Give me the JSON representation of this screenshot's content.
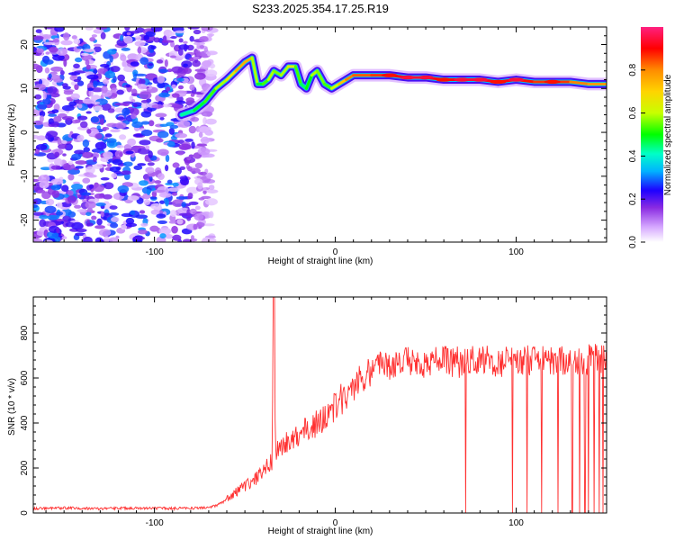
{
  "chart_data": [
    {
      "type": "heatmap",
      "title": "S233.2025.354.17.25.R19",
      "xlabel": "Height of straight line (km)",
      "ylabel": "Frequency (Hz)",
      "xlim": [
        -167,
        150
      ],
      "ylim": [
        -25,
        24
      ],
      "x_ticks": [
        -100,
        0,
        100
      ],
      "y_ticks": [
        -20,
        -10,
        0,
        10,
        20
      ],
      "colorbar": {
        "label": "Normalized spectral amplitude",
        "range": [
          0,
          1
        ],
        "ticks": [
          "0.0",
          "0.2",
          "0.4",
          "0.6",
          "0.8"
        ],
        "colors": [
          "#ffffff",
          "#d6a8ff",
          "#8a2be2",
          "#1e00ff",
          "#00b4ff",
          "#00ffc8",
          "#00ff00",
          "#c8ff00",
          "#ffd400",
          "#ff8c00",
          "#ff0000",
          "#ff2080"
        ]
      },
      "ridge": {
        "x": [
          -85,
          -78,
          -72,
          -66,
          -60,
          -55,
          -50,
          -46,
          -43,
          -40,
          -37,
          -34,
          -30,
          -26,
          -22,
          -19,
          -16,
          -13,
          -10,
          -6,
          -2,
          2,
          6,
          10,
          20,
          30,
          40,
          50,
          60,
          70,
          80,
          90,
          100,
          110,
          120,
          130,
          140,
          150
        ],
        "frequency": [
          4,
          5,
          7,
          10,
          12,
          14,
          16,
          17,
          11,
          11,
          12,
          14,
          13,
          15,
          15,
          11,
          10,
          13,
          14,
          11,
          10,
          11,
          12,
          13,
          13,
          13,
          12.5,
          12.5,
          12,
          12,
          12,
          11.5,
          12,
          11.5,
          11.5,
          11.5,
          11,
          11
        ],
        "amplitude": [
          0.45,
          0.5,
          0.55,
          0.6,
          0.65,
          0.75,
          0.8,
          0.75,
          0.5,
          0.55,
          0.6,
          0.65,
          0.55,
          0.7,
          0.65,
          0.5,
          0.5,
          0.6,
          0.65,
          0.55,
          0.6,
          0.7,
          0.8,
          0.85,
          0.85,
          0.9,
          0.95,
          0.95,
          0.9,
          0.95,
          0.95,
          0.9,
          0.95,
          0.85,
          0.9,
          0.85,
          0.8,
          0.8
        ]
      },
      "noise_region": {
        "x_range": [
          -167,
          -68
        ],
        "frequency_range": [
          -25,
          24
        ],
        "amplitude_range": [
          0.05,
          0.35
        ]
      }
    },
    {
      "type": "line",
      "title": "",
      "xlabel": "Height of straight line (km)",
      "ylabel": "SNR (10 * v/v)",
      "xlim": [
        -167,
        150
      ],
      "ylim": [
        0,
        960
      ],
      "x_ticks": [
        -100,
        0,
        100
      ],
      "y_ticks": [
        0,
        200,
        400,
        600,
        800
      ],
      "color": "#ff3030",
      "series": [
        {
          "name": "SNR",
          "x": [
            -167,
            -150,
            -130,
            -110,
            -90,
            -80,
            -70,
            -65,
            -60,
            -55,
            -50,
            -45,
            -40,
            -35,
            -34,
            -33,
            -30,
            -25,
            -20,
            -15,
            -10,
            -5,
            0,
            5,
            10,
            15,
            20,
            25,
            30,
            40,
            50,
            60,
            70,
            80,
            90,
            100,
            110,
            120,
            130,
            140,
            150
          ],
          "y": [
            20,
            22,
            20,
            22,
            20,
            21,
            25,
            35,
            60,
            90,
            120,
            140,
            190,
            230,
            960,
            260,
            300,
            320,
            350,
            380,
            400,
            430,
            470,
            520,
            560,
            600,
            630,
            650,
            660,
            670,
            670,
            675,
            670,
            680,
            675,
            670,
            680,
            675,
            670,
            680,
            690
          ],
          "dropouts": [
            {
              "x": 72,
              "y": 0
            },
            {
              "x": 98,
              "y": 0
            },
            {
              "x": 106,
              "y": 0
            },
            {
              "x": 114,
              "y": 0
            },
            {
              "x": 123,
              "y": 0
            },
            {
              "x": 131,
              "y": 0
            },
            {
              "x": 135,
              "y": 0
            },
            {
              "x": 138,
              "y": 0
            },
            {
              "x": 140,
              "y": 0
            },
            {
              "x": 143,
              "y": 0
            },
            {
              "x": 146,
              "y": 0
            },
            {
              "x": 148,
              "y": 0
            }
          ]
        }
      ]
    }
  ]
}
